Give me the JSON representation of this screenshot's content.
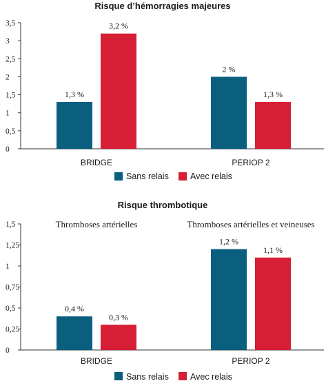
{
  "colors": {
    "series_1": "#0a5f7f",
    "series_2": "#d61f35",
    "axis": "#333333"
  },
  "chart_data": [
    {
      "type": "bar",
      "title": "Risque d’hémorragies majeures",
      "categories": [
        "BRIDGE",
        "PERIOP 2"
      ],
      "series": [
        {
          "name": "Sans relais",
          "values": [
            1.3,
            2
          ],
          "labels": [
            "1,3 %",
            "2 %"
          ]
        },
        {
          "name": "Avec relais",
          "values": [
            3.2,
            1.3
          ],
          "labels": [
            "3,2 %",
            "1,3 %"
          ]
        }
      ],
      "ylim": [
        0,
        3.5
      ],
      "yticks": [
        "0",
        "0,5",
        "1",
        "1,5",
        "2",
        "2,5",
        "3",
        "3,5"
      ],
      "grid": false,
      "legend_position": "bottom-center"
    },
    {
      "type": "bar",
      "title": "Risque thrombotique",
      "subtitles": [
        "Thromboses artérielles",
        "Thromboses artérielles et veineuses"
      ],
      "categories": [
        "BRIDGE",
        "PERIOP 2"
      ],
      "series": [
        {
          "name": "Sans relais",
          "values": [
            0.4,
            1.2
          ],
          "labels": [
            "0,4 %",
            "1,2 %"
          ]
        },
        {
          "name": "Avec relais",
          "values": [
            0.3,
            1.1
          ],
          "labels": [
            "0,3 %",
            "1,1 %"
          ]
        }
      ],
      "ylim": [
        0,
        1.5
      ],
      "yticks": [
        "0",
        "0,25",
        "0,5",
        "0,75",
        "1",
        "1,25",
        "1,5"
      ],
      "grid": false,
      "legend_position": "bottom-center"
    }
  ]
}
